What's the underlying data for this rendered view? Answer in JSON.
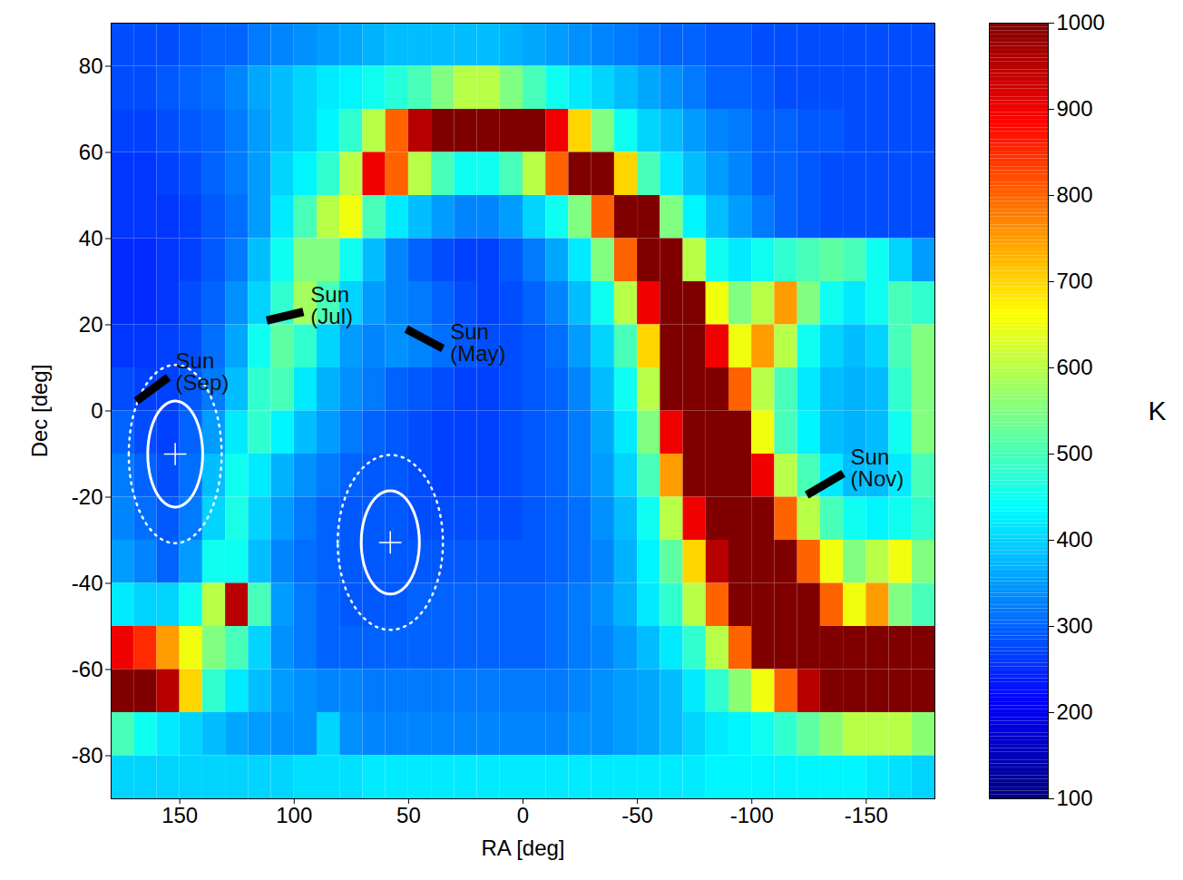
{
  "chart_data": {
    "type": "heatmap",
    "x_label": "RA [deg]",
    "y_label": "Dec [deg]",
    "xlim": [
      180,
      -180
    ],
    "ylim": [
      -90,
      90
    ],
    "xticks": [
      150,
      100,
      50,
      0,
      -50,
      -100,
      -150
    ],
    "yticks": [
      80,
      60,
      40,
      20,
      0,
      -20,
      -40,
      -60,
      -80
    ],
    "x_bins": [
      180,
      170,
      160,
      150,
      140,
      130,
      120,
      110,
      100,
      90,
      80,
      70,
      60,
      50,
      40,
      30,
      20,
      10,
      0,
      -10,
      -20,
      -30,
      -40,
      -50,
      -60,
      -70,
      -80,
      -90,
      -100,
      -110,
      -120,
      -130,
      -140,
      -150,
      -160,
      -170,
      -180
    ],
    "y_bins": [
      90,
      80,
      70,
      60,
      50,
      40,
      30,
      20,
      10,
      0,
      -10,
      -20,
      -30,
      -40,
      -50,
      -60,
      -70,
      -80,
      -90
    ],
    "values": [
      [
        280,
        280,
        280,
        290,
        300,
        300,
        320,
        330,
        340,
        350,
        360,
        370,
        380,
        380,
        380,
        380,
        380,
        370,
        360,
        350,
        340,
        330,
        320,
        310,
        300,
        300,
        290,
        290,
        280,
        280,
        280,
        280,
        280,
        280,
        280,
        280
      ],
      [
        280,
        280,
        290,
        300,
        310,
        330,
        360,
        380,
        400,
        420,
        430,
        450,
        470,
        500,
        550,
        600,
        600,
        550,
        500,
        450,
        420,
        400,
        380,
        360,
        340,
        320,
        300,
        300,
        290,
        280,
        280,
        280,
        280,
        280,
        280,
        280
      ],
      [
        270,
        270,
        280,
        290,
        300,
        320,
        350,
        380,
        400,
        430,
        480,
        600,
        800,
        950,
        1000,
        1000,
        1000,
        1000,
        1000,
        900,
        700,
        550,
        450,
        400,
        380,
        350,
        330,
        320,
        300,
        300,
        290,
        290,
        280,
        280,
        280,
        280
      ],
      [
        260,
        260,
        270,
        280,
        300,
        320,
        350,
        400,
        430,
        480,
        600,
        900,
        800,
        600,
        500,
        450,
        450,
        500,
        600,
        800,
        1000,
        1000,
        700,
        500,
        420,
        380,
        350,
        330,
        300,
        300,
        290,
        280,
        280,
        280,
        280,
        280
      ],
      [
        260,
        260,
        260,
        270,
        290,
        310,
        350,
        420,
        500,
        600,
        650,
        500,
        420,
        380,
        350,
        330,
        330,
        350,
        400,
        450,
        550,
        800,
        1000,
        1000,
        550,
        430,
        380,
        350,
        320,
        300,
        290,
        280,
        280,
        280,
        280,
        280
      ],
      [
        250,
        250,
        260,
        270,
        290,
        320,
        380,
        450,
        550,
        550,
        450,
        380,
        330,
        300,
        280,
        270,
        270,
        290,
        320,
        360,
        420,
        550,
        800,
        1000,
        1000,
        600,
        450,
        420,
        450,
        480,
        500,
        520,
        500,
        450,
        400,
        350
      ],
      [
        250,
        250,
        260,
        280,
        300,
        340,
        400,
        480,
        580,
        500,
        400,
        350,
        330,
        320,
        300,
        280,
        270,
        280,
        300,
        330,
        380,
        450,
        600,
        900,
        1000,
        1000,
        650,
        550,
        600,
        750,
        550,
        450,
        420,
        450,
        500,
        480
      ],
      [
        260,
        260,
        270,
        280,
        310,
        360,
        450,
        520,
        480,
        400,
        350,
        330,
        340,
        330,
        310,
        290,
        280,
        280,
        290,
        310,
        350,
        400,
        500,
        700,
        1000,
        1000,
        900,
        650,
        750,
        600,
        450,
        400,
        380,
        400,
        500,
        550
      ],
      [
        280,
        270,
        270,
        290,
        320,
        380,
        480,
        500,
        420,
        370,
        340,
        320,
        300,
        290,
        280,
        270,
        270,
        280,
        290,
        300,
        330,
        380,
        450,
        600,
        1000,
        1000,
        1000,
        800,
        600,
        500,
        420,
        380,
        370,
        380,
        480,
        550
      ],
      [
        300,
        280,
        270,
        300,
        350,
        420,
        480,
        430,
        380,
        350,
        320,
        300,
        290,
        280,
        270,
        270,
        270,
        280,
        290,
        300,
        320,
        360,
        420,
        550,
        900,
        1000,
        1000,
        1000,
        650,
        500,
        430,
        380,
        370,
        380,
        450,
        550
      ],
      [
        320,
        300,
        280,
        310,
        380,
        450,
        420,
        370,
        340,
        320,
        300,
        290,
        290,
        280,
        270,
        270,
        270,
        280,
        290,
        300,
        320,
        350,
        400,
        500,
        750,
        1000,
        1000,
        1000,
        900,
        600,
        500,
        420,
        380,
        380,
        420,
        500
      ],
      [
        330,
        310,
        290,
        320,
        400,
        460,
        400,
        350,
        320,
        300,
        290,
        290,
        290,
        280,
        280,
        280,
        280,
        280,
        290,
        300,
        310,
        340,
        380,
        450,
        600,
        900,
        1000,
        1000,
        1000,
        800,
        600,
        500,
        450,
        430,
        450,
        480
      ],
      [
        350,
        330,
        300,
        350,
        450,
        450,
        380,
        330,
        310,
        300,
        290,
        290,
        290,
        290,
        290,
        290,
        290,
        290,
        290,
        300,
        310,
        330,
        370,
        430,
        520,
        700,
        950,
        1000,
        1000,
        1000,
        800,
        650,
        550,
        600,
        650,
        550
      ],
      [
        420,
        400,
        400,
        450,
        600,
        950,
        500,
        350,
        320,
        300,
        290,
        290,
        290,
        300,
        300,
        300,
        300,
        300,
        300,
        310,
        320,
        340,
        370,
        420,
        480,
        600,
        800,
        1000,
        1000,
        1000,
        1000,
        800,
        650,
        750,
        550,
        500
      ],
      [
        900,
        850,
        750,
        650,
        550,
        500,
        400,
        340,
        320,
        300,
        300,
        300,
        300,
        300,
        300,
        300,
        300,
        300,
        300,
        310,
        320,
        330,
        350,
        380,
        420,
        480,
        600,
        800,
        1000,
        1000,
        1000,
        1000,
        1000,
        1000,
        1000,
        1000
      ],
      [
        1000,
        1000,
        950,
        700,
        480,
        420,
        380,
        350,
        340,
        330,
        330,
        320,
        320,
        320,
        320,
        320,
        320,
        320,
        320,
        320,
        330,
        340,
        350,
        360,
        380,
        420,
        480,
        560,
        650,
        800,
        950,
        1000,
        1000,
        1000,
        1000,
        1000
      ],
      [
        500,
        450,
        420,
        400,
        380,
        360,
        350,
        340,
        340,
        400,
        340,
        330,
        330,
        330,
        330,
        330,
        330,
        330,
        330,
        330,
        340,
        340,
        350,
        360,
        380,
        400,
        420,
        430,
        450,
        480,
        520,
        560,
        600,
        600,
        600,
        560
      ],
      [
        400,
        400,
        400,
        400,
        400,
        400,
        400,
        400,
        410,
        410,
        410,
        420,
        420,
        420,
        420,
        420,
        420,
        420,
        420,
        420,
        420,
        420,
        420,
        420,
        420,
        420,
        430,
        430,
        430,
        430,
        430,
        430,
        430,
        420,
        410,
        400
      ]
    ],
    "colorbar": {
      "range": [
        100,
        1000
      ],
      "ticks": [
        100,
        200,
        300,
        400,
        500,
        600,
        700,
        800,
        900,
        1000
      ],
      "label": "K",
      "color": "jet"
    },
    "annotations": [
      {
        "label": "Sun (Sep)",
        "ra": [
          169,
          155
        ],
        "dec": [
          2.3,
          7.8
        ]
      },
      {
        "label": "Sun (Jul)",
        "ra": [
          112,
          96
        ],
        "dec": [
          21,
          23
        ]
      },
      {
        "label": "Sun (May)",
        "ra": [
          51,
          35
        ],
        "dec": [
          19,
          14.5
        ]
      },
      {
        "label": "Sun (Nov)",
        "ra": [
          -124,
          -140
        ],
        "dec": [
          -19.5,
          -14.5
        ]
      }
    ],
    "regions": [
      {
        "ra": 152,
        "dec": -10,
        "marker": "plus",
        "ellipses": [
          {
            "ra_radius": 12,
            "dec_radius": 12.3,
            "line_style": "solid"
          },
          {
            "ra_radius": 20.3,
            "dec_radius": 20.7,
            "line_style": "dotted"
          }
        ]
      },
      {
        "ra": 58,
        "dec": -30.5,
        "marker": "plus",
        "ellipses": [
          {
            "ra_radius": 12.7,
            "dec_radius": 12,
            "line_style": "solid"
          },
          {
            "ra_radius": 23,
            "dec_radius": 20.3,
            "line_style": "dotted"
          }
        ]
      }
    ]
  }
}
